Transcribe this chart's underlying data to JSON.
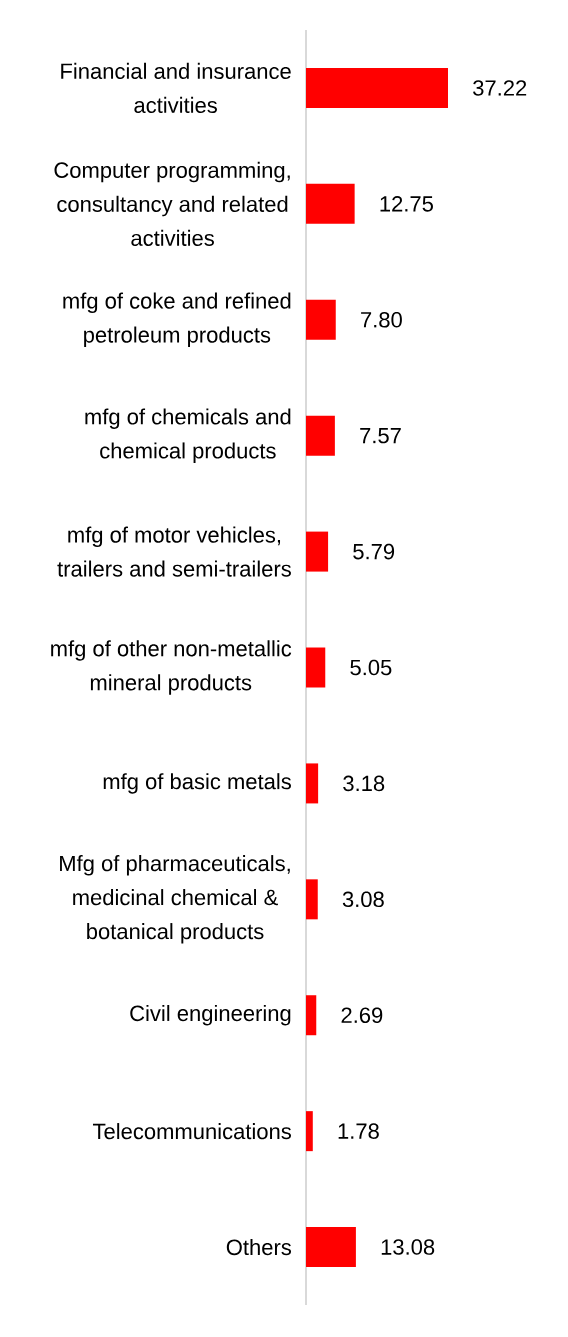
{
  "chart_data": {
    "type": "bar",
    "orientation": "horizontal",
    "categories": [
      "Financial and insurance activities",
      "Computer programming, consultancy and related activities",
      "mfg of coke and refined petroleum products",
      "mfg of chemicals and chemical products",
      "mfg of motor vehicles, trailers and semi-trailers",
      "mfg of other non-metallic mineral products",
      "mfg of basic metals",
      "Mfg of pharmaceuticals, medicinal chemical & botanical products",
      "Civil engineering",
      "Telecommunications",
      "Others"
    ],
    "values": [
      37.22,
      12.75,
      7.8,
      7.57,
      5.79,
      5.05,
      3.18,
      3.08,
      2.69,
      1.78,
      13.08
    ],
    "value_labels": [
      "37.22",
      "12.75",
      "7.80",
      "7.57",
      "5.79",
      "5.05",
      "3.18",
      "3.08",
      "2.69",
      "1.78",
      "13.08"
    ],
    "color": "#ff0000"
  }
}
